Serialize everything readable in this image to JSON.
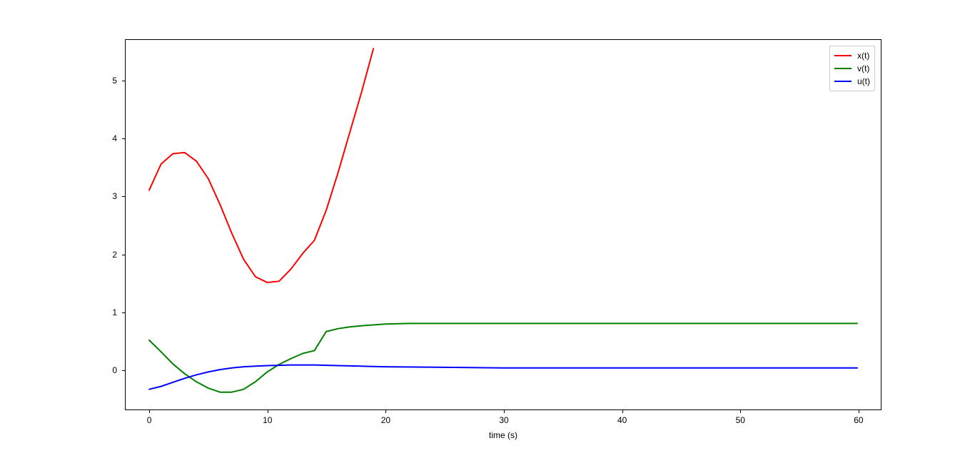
{
  "chart": {
    "type": "line",
    "background_color": "#ffffff",
    "border_color": "#000000",
    "xlabel": "time (s)",
    "label_fontsize": 12,
    "xlim": [
      -2,
      62
    ],
    "ylim": [
      -0.7,
      5.7
    ],
    "xticks": [
      0,
      10,
      20,
      30,
      40,
      50,
      60
    ],
    "yticks": [
      0,
      1,
      2,
      3,
      4,
      5
    ],
    "tick_fontsize": 12,
    "tick_color": "#000000",
    "line_width": 2,
    "series": {
      "x": {
        "label": "x(t)",
        "color": "#ff0000",
        "t": [
          0,
          1,
          2,
          3,
          4,
          5,
          6,
          7,
          8,
          9,
          10,
          11,
          12,
          13,
          14,
          15,
          16,
          17,
          18,
          19
        ],
        "y": [
          3.1,
          3.55,
          3.73,
          3.75,
          3.6,
          3.3,
          2.85,
          2.35,
          1.9,
          1.6,
          1.5,
          1.52,
          1.73,
          2.0,
          2.23,
          2.75,
          3.4,
          4.1,
          4.8,
          5.55
        ]
      },
      "v": {
        "label": "v(t)",
        "color": "#008000",
        "t": [
          0,
          1,
          2,
          3,
          4,
          5,
          6,
          7,
          8,
          9,
          10,
          11,
          12,
          13,
          14,
          15,
          16,
          17,
          18,
          20,
          22,
          24,
          26,
          30,
          35,
          40,
          45,
          50,
          55,
          60
        ],
        "y": [
          0.5,
          0.3,
          0.09,
          -0.08,
          -0.22,
          -0.33,
          -0.4,
          -0.4,
          -0.35,
          -0.22,
          -0.05,
          0.08,
          0.18,
          0.27,
          0.32,
          0.65,
          0.7,
          0.73,
          0.75,
          0.78,
          0.79,
          0.79,
          0.79,
          0.79,
          0.79,
          0.79,
          0.79,
          0.79,
          0.79,
          0.79
        ]
      },
      "u": {
        "label": "u(t)",
        "color": "#0000ff",
        "t": [
          0,
          1,
          2,
          3,
          4,
          5,
          6,
          7,
          8,
          9,
          10,
          12,
          14,
          16,
          18,
          20,
          25,
          30,
          35,
          40,
          45,
          50,
          55,
          60
        ],
        "y": [
          -0.35,
          -0.3,
          -0.23,
          -0.16,
          -0.1,
          -0.05,
          -0.01,
          0.02,
          0.04,
          0.05,
          0.06,
          0.07,
          0.07,
          0.06,
          0.05,
          0.04,
          0.03,
          0.02,
          0.02,
          0.02,
          0.02,
          0.02,
          0.02,
          0.02
        ]
      }
    },
    "legend": {
      "position": "top-right",
      "border_color": "#cccccc",
      "background": "#ffffff",
      "fontsize": 12,
      "items": [
        {
          "key": "x",
          "label": "x(t)",
          "color": "#ff0000"
        },
        {
          "key": "v",
          "label": "v(t)",
          "color": "#008000"
        },
        {
          "key": "u",
          "label": "u(t)",
          "color": "#0000ff"
        }
      ]
    }
  }
}
